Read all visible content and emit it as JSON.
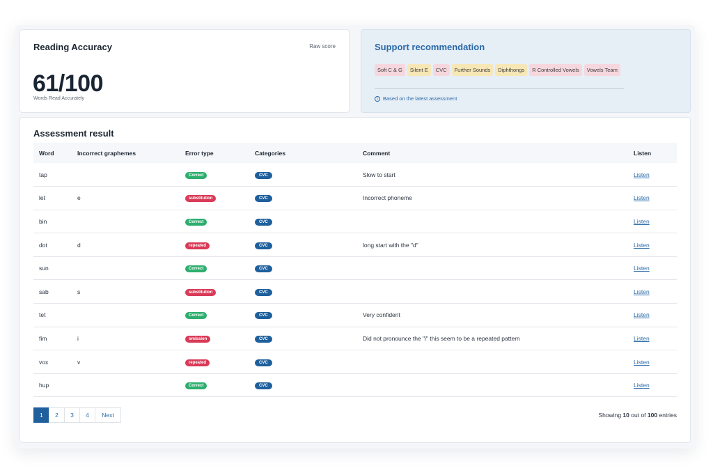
{
  "accuracy": {
    "title": "Reading Accuracy",
    "raw_label": "Raw score",
    "score": "61/100",
    "score_caption": "Words Read Accurately"
  },
  "support": {
    "title": "Support recommendation",
    "chips": [
      {
        "label": "Soft C & G",
        "tone": "pink"
      },
      {
        "label": "Silent E",
        "tone": "yellow"
      },
      {
        "label": "CVC",
        "tone": "pink"
      },
      {
        "label": "Further Sounds",
        "tone": "yellow"
      },
      {
        "label": "Diphthongs",
        "tone": "yellow"
      },
      {
        "label": "R Controlled Vowels",
        "tone": "pink"
      },
      {
        "label": "Vowels Team",
        "tone": "pink"
      }
    ],
    "footnote": "Based on the latest assessment"
  },
  "results": {
    "title": "Assessment result",
    "columns": [
      "Word",
      "Incorrect graphemes",
      "Error type",
      "Categories",
      "Comment",
      "Listen"
    ],
    "rows": [
      {
        "word": "tap",
        "graphemes": "",
        "error": "Correct",
        "error_kind": "correct",
        "category": "CVC",
        "comment": "Slow to start",
        "listen": "Listen"
      },
      {
        "word": "let",
        "graphemes": "e",
        "error": "substitution",
        "error_kind": "substitution",
        "category": "CVC",
        "comment": "Incorrect phoneme",
        "listen": "Listen"
      },
      {
        "word": "bin",
        "graphemes": "",
        "error": "Correct",
        "error_kind": "correct",
        "category": "CVC",
        "comment": "",
        "listen": "Listen"
      },
      {
        "word": "dot",
        "graphemes": "d",
        "error": "repeated",
        "error_kind": "repeated",
        "category": "CVC",
        "comment": "long start with the \"d\"",
        "listen": "Listen"
      },
      {
        "word": "sun",
        "graphemes": "",
        "error": "Correct",
        "error_kind": "correct",
        "category": "CVC",
        "comment": "",
        "listen": "Listen"
      },
      {
        "word": "sab",
        "graphemes": "s",
        "error": "substitution",
        "error_kind": "substitution",
        "category": "CVC",
        "comment": "",
        "listen": "Listen"
      },
      {
        "word": "tet",
        "graphemes": "",
        "error": "Correct",
        "error_kind": "correct",
        "category": "CVC",
        "comment": "Very confident",
        "listen": "Listen"
      },
      {
        "word": "fim",
        "graphemes": "i",
        "error": "omission",
        "error_kind": "omission",
        "category": "CVC",
        "comment": "Did not pronounce the \"i\" this seem to be a repeated pattern",
        "listen": "Listen"
      },
      {
        "word": "vox",
        "graphemes": "v",
        "error": "repeated",
        "error_kind": "repeated",
        "category": "CVC",
        "comment": "",
        "listen": "Listen"
      },
      {
        "word": "hup",
        "graphemes": "",
        "error": "Correct",
        "error_kind": "correct",
        "category": "CVC",
        "comment": "",
        "listen": "Listen"
      }
    ]
  },
  "pagination": {
    "pages": [
      "1",
      "2",
      "3",
      "4"
    ],
    "active": "1",
    "next_label": "Next",
    "showing_prefix": "Showing",
    "showing_count": "10",
    "showing_mid": "out of",
    "showing_total": "100",
    "showing_suffix": "entries"
  },
  "colors": {
    "accent": "#2a6aa8",
    "primary_dark": "#1e5f9c",
    "correct": "#2dae6e",
    "error": "#d93a57",
    "chip_pink": "#f6d7de",
    "chip_yellow": "#f7e7b6"
  }
}
